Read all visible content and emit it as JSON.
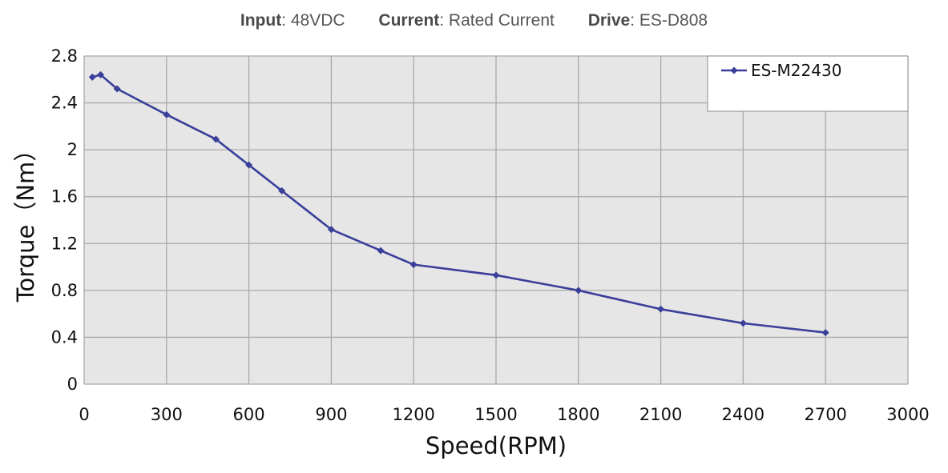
{
  "header": {
    "input_label": "Input",
    "input_value": ": 48VDC",
    "current_label": "Current",
    "current_value": ": Rated Current",
    "drive_label": "Drive",
    "drive_value": ": ES-D808"
  },
  "chart_data": {
    "type": "line",
    "xlabel": "Speed(RPM)",
    "ylabel": "Torque（Nm）",
    "xlim": [
      0,
      3000
    ],
    "ylim": [
      0,
      2.8
    ],
    "xticks": [
      0,
      300,
      600,
      900,
      1200,
      1500,
      1800,
      2100,
      2400,
      2700,
      3000
    ],
    "yticks": [
      0,
      0.4,
      0.8,
      1.2,
      1.6,
      2,
      2.4,
      2.8
    ],
    "ytick_labels": [
      "0",
      "0.4",
      "0.8",
      "1.2",
      "1.6",
      "2",
      "2.4",
      "2.8"
    ],
    "grid": true,
    "legend_position": "top-right",
    "colors": {
      "line": "#3a3f9a",
      "plot_bg": "#e6e6e6",
      "grid": "#a9a9a9"
    },
    "series": [
      {
        "name": "ES-M22430",
        "x": [
          30,
          60,
          120,
          300,
          480,
          600,
          720,
          900,
          1080,
          1200,
          1500,
          1800,
          2100,
          2400,
          2700
        ],
        "y": [
          2.62,
          2.64,
          2.52,
          2.3,
          2.09,
          1.87,
          1.65,
          1.32,
          1.14,
          1.02,
          0.93,
          0.8,
          0.64,
          0.52,
          0.44
        ]
      }
    ]
  }
}
